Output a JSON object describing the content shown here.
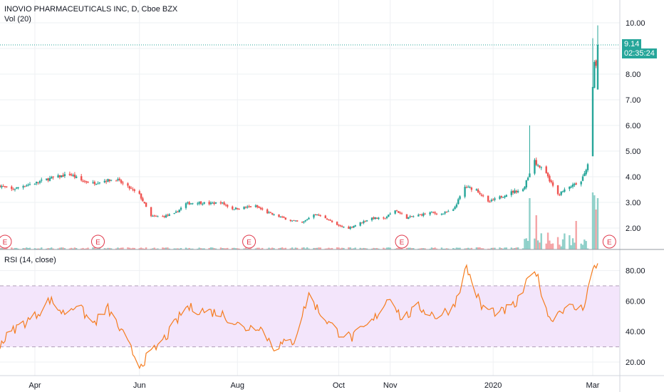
{
  "header": {
    "title": "INOVIO PHARMACEUTICALS INC, D, Cboe BZX",
    "volume_label": "Vol (20)",
    "rsi_label": "RSI (14, close)"
  },
  "price_tag": {
    "price": "9.14",
    "countdown": "02:35:24"
  },
  "colors": {
    "up": "#26a69a",
    "down": "#ef5350",
    "vol_up": "#8fd0c9",
    "vol_down": "#f5a4a6",
    "rsi_line": "#f57c1f",
    "rsi_band": "#f3e5fb",
    "rsi_band_edge": "#b0a0b8",
    "price_line": "#26a69a",
    "grid": "#eef0f3",
    "earnings": "#e0374a"
  },
  "chart_data": [
    {
      "type": "candlestick",
      "title": "INOVIO PHARMACEUTICALS INC, D, Cboe BZX",
      "x_range": [
        "2019-03-11",
        "2020-03-06"
      ],
      "yticks": [
        "2.00",
        "3.00",
        "4.00",
        "5.00",
        "6.00",
        "7.00",
        "8.00",
        "9.00",
        "10.00"
      ],
      "ylim": [
        1.2,
        10.8
      ],
      "last_price": 9.14,
      "xticks": [
        {
          "label": "Apr",
          "date": "2019-04-01"
        },
        {
          "label": "Jun",
          "date": "2019-06-03"
        },
        {
          "label": "Aug",
          "date": "2019-08-01"
        },
        {
          "label": "Oct",
          "date": "2019-10-01"
        },
        {
          "label": "Nov",
          "date": "2019-11-01"
        },
        {
          "label": "2020",
          "date": "2020-01-02"
        },
        {
          "label": "Mar",
          "date": "2020-03-02"
        }
      ],
      "close_path": [
        [
          "2019-03-11",
          3.65
        ],
        [
          "2019-03-18",
          3.5
        ],
        [
          "2019-03-25",
          3.65
        ],
        [
          "2019-04-01",
          3.75
        ],
        [
          "2019-04-08",
          3.9
        ],
        [
          "2019-04-15",
          4.0
        ],
        [
          "2019-04-22",
          4.1
        ],
        [
          "2019-04-29",
          3.85
        ],
        [
          "2019-05-06",
          3.75
        ],
        [
          "2019-05-13",
          3.85
        ],
        [
          "2019-05-20",
          3.9
        ],
        [
          "2019-05-27",
          3.6
        ],
        [
          "2019-06-03",
          3.3
        ],
        [
          "2019-06-10",
          2.45
        ],
        [
          "2019-06-17",
          2.45
        ],
        [
          "2019-06-24",
          2.55
        ],
        [
          "2019-07-01",
          2.95
        ],
        [
          "2019-07-08",
          3.0
        ],
        [
          "2019-07-15",
          2.95
        ],
        [
          "2019-07-22",
          3.0
        ],
        [
          "2019-07-29",
          2.75
        ],
        [
          "2019-08-05",
          2.8
        ],
        [
          "2019-08-12",
          2.85
        ],
        [
          "2019-08-19",
          2.6
        ],
        [
          "2019-08-26",
          2.45
        ],
        [
          "2019-09-02",
          2.3
        ],
        [
          "2019-09-09",
          2.2
        ],
        [
          "2019-09-16",
          2.55
        ],
        [
          "2019-09-23",
          2.4
        ],
        [
          "2019-09-30",
          2.1
        ],
        [
          "2019-10-07",
          2.0
        ],
        [
          "2019-10-14",
          2.2
        ],
        [
          "2019-10-21",
          2.4
        ],
        [
          "2019-10-28",
          2.35
        ],
        [
          "2019-11-04",
          2.7
        ],
        [
          "2019-11-11",
          2.4
        ],
        [
          "2019-11-18",
          2.5
        ],
        [
          "2019-11-25",
          2.6
        ],
        [
          "2019-12-02",
          2.55
        ],
        [
          "2019-12-09",
          2.7
        ],
        [
          "2019-12-16",
          3.6
        ],
        [
          "2019-12-23",
          3.5
        ],
        [
          "2019-12-30",
          3.0
        ],
        [
          "2020-01-06",
          3.2
        ],
        [
          "2020-01-13",
          3.4
        ],
        [
          "2020-01-20",
          3.5
        ],
        [
          "2020-01-27",
          4.6
        ],
        [
          "2020-02-03",
          4.1
        ],
        [
          "2020-02-10",
          3.3
        ],
        [
          "2020-02-17",
          3.6
        ],
        [
          "2020-02-24",
          3.8
        ],
        [
          "2020-02-28",
          4.5
        ],
        [
          "2020-03-02",
          7.5
        ],
        [
          "2020-03-03",
          8.5
        ],
        [
          "2020-03-04",
          8.2
        ],
        [
          "2020-03-05",
          9.14
        ]
      ],
      "spikes": [
        {
          "date": "2020-01-24",
          "high": 6.0,
          "low": 4.0
        },
        {
          "date": "2020-03-02",
          "high": 9.4,
          "low": 4.8
        },
        {
          "date": "2020-03-05",
          "high": 9.9,
          "low": 7.4
        }
      ]
    },
    {
      "type": "bar",
      "title": "Vol (20)",
      "note": "volume histogram; large spikes late Jan 2020 and early Mar 2020",
      "relative_values": [
        [
          "2020-01-24",
          0.9
        ],
        [
          "2020-01-28",
          0.6
        ],
        [
          "2020-02-21",
          0.5
        ],
        [
          "2020-03-02",
          1.0
        ],
        [
          "2020-03-03",
          0.95
        ],
        [
          "2020-03-04",
          0.7
        ],
        [
          "2020-03-05",
          0.9
        ]
      ]
    },
    {
      "type": "line",
      "title": "RSI (14, close)",
      "yticks": [
        "20.00",
        "40.00",
        "60.00",
        "80.00"
      ],
      "ylim": [
        14,
        88
      ],
      "bands": [
        30,
        70
      ],
      "values": [
        [
          "2019-03-11",
          32
        ],
        [
          "2019-03-20",
          42
        ],
        [
          "2019-04-01",
          50
        ],
        [
          "2019-04-10",
          61
        ],
        [
          "2019-04-18",
          52
        ],
        [
          "2019-04-26",
          58
        ],
        [
          "2019-05-06",
          45
        ],
        [
          "2019-05-15",
          55
        ],
        [
          "2019-05-24",
          38
        ],
        [
          "2019-06-03",
          18
        ],
        [
          "2019-06-12",
          28
        ],
        [
          "2019-06-20",
          38
        ],
        [
          "2019-07-01",
          56
        ],
        [
          "2019-07-10",
          54
        ],
        [
          "2019-07-22",
          52
        ],
        [
          "2019-08-05",
          42
        ],
        [
          "2019-08-14",
          44
        ],
        [
          "2019-08-23",
          30
        ],
        [
          "2019-09-04",
          34
        ],
        [
          "2019-09-13",
          64
        ],
        [
          "2019-09-20",
          52
        ],
        [
          "2019-09-30",
          40
        ],
        [
          "2019-10-09",
          36
        ],
        [
          "2019-10-21",
          46
        ],
        [
          "2019-11-01",
          64
        ],
        [
          "2019-11-08",
          48
        ],
        [
          "2019-11-18",
          56
        ],
        [
          "2019-11-29",
          50
        ],
        [
          "2019-12-09",
          56
        ],
        [
          "2019-12-17",
          82
        ],
        [
          "2019-12-26",
          56
        ],
        [
          "2020-01-06",
          52
        ],
        [
          "2020-01-16",
          58
        ],
        [
          "2020-01-27",
          82
        ],
        [
          "2020-02-05",
          48
        ],
        [
          "2020-02-14",
          56
        ],
        [
          "2020-02-25",
          55
        ],
        [
          "2020-03-02",
          80
        ],
        [
          "2020-03-05",
          84
        ]
      ]
    }
  ],
  "earnings_markers": {
    "label": "E",
    "dates": [
      "2019-03-14",
      "2019-05-09",
      "2019-08-08",
      "2019-11-08",
      "2020-03-12"
    ]
  }
}
